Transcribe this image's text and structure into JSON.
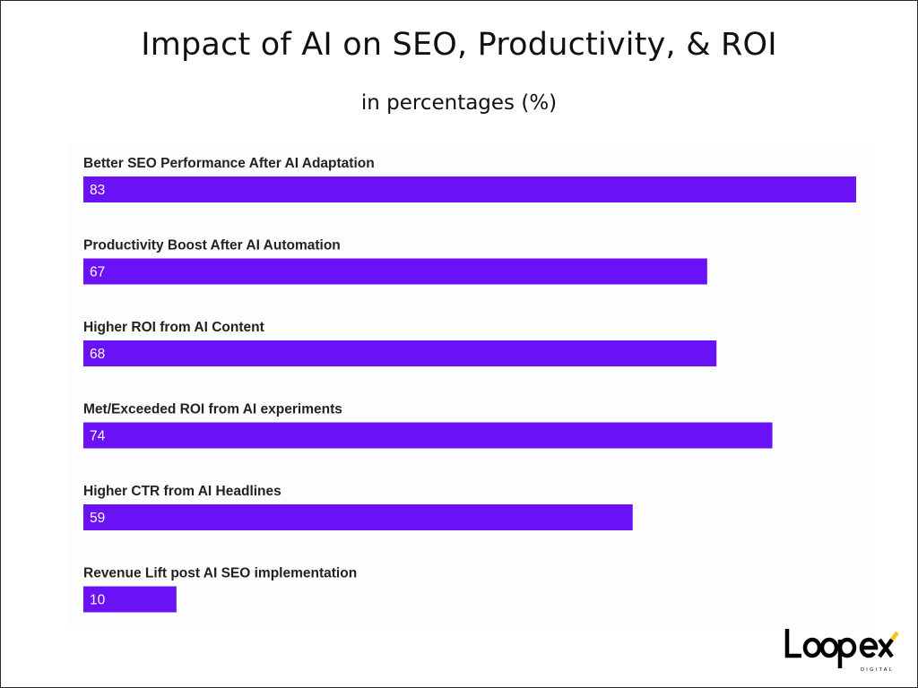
{
  "header": {
    "title": "Impact of AI on SEO, Productivity, & ROI",
    "subtitle": "in percentages (%)"
  },
  "logo": {
    "name": "Loopex",
    "tagline": "DIGITAL",
    "accent_color": "#f5c518"
  },
  "colors": {
    "bar": "#6a11f5"
  },
  "chart_data": {
    "type": "bar",
    "orientation": "horizontal",
    "title": "Impact of AI on SEO, Productivity, & ROI",
    "subtitle": "in percentages (%)",
    "categories": [
      "Better SEO Performance After AI Adaptation",
      "Productivity Boost After AI Automation",
      "Higher ROI from AI Content",
      "Met/Exceeded ROI from AI experiments",
      "Higher CTR from AI Headlines",
      "Revenue Lift post AI SEO implementation"
    ],
    "values": [
      83,
      67,
      68,
      74,
      59,
      10
    ],
    "xlim": [
      0,
      83
    ],
    "grid": false,
    "legend": "none",
    "data_labels": "inside-start"
  }
}
